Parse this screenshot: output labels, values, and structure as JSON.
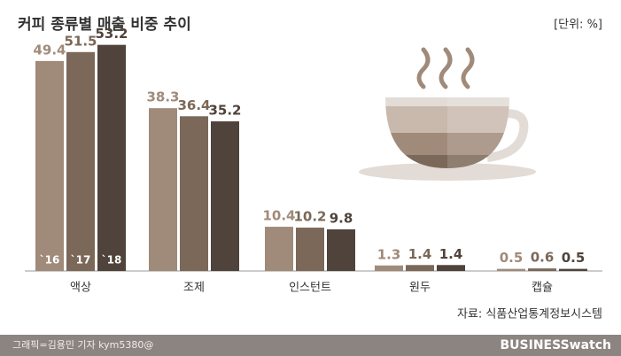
{
  "chart_data": {
    "type": "bar",
    "title": "커피 종류별 매출 비중 추이",
    "unit": "[단위: %]",
    "source": "자료: 식품산업통계정보시스템",
    "credit": "그래픽=김용민 기자 kym5380@",
    "brand": "BUSINESSwatch",
    "categories": [
      "액상",
      "조제",
      "인스턴트",
      "원두",
      "캡슐"
    ],
    "series": [
      {
        "name": "`16",
        "color": "#a08a79",
        "values": [
          49.4,
          38.3,
          10.4,
          1.3,
          0.5
        ]
      },
      {
        "name": "`17",
        "color": "#7b6858",
        "values": [
          51.5,
          36.4,
          10.2,
          1.4,
          0.6
        ]
      },
      {
        "name": "`18",
        "color": "#4f433b",
        "values": [
          53.2,
          35.2,
          9.8,
          1.4,
          0.5
        ]
      }
    ]
  }
}
